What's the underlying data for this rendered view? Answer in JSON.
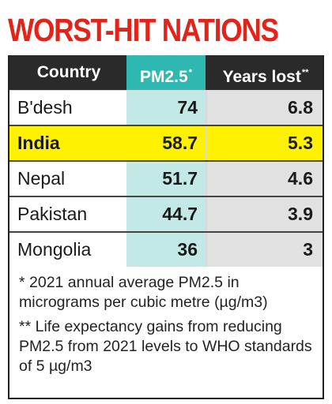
{
  "title": "WORST-HIT NATIONS",
  "columns": {
    "country": "Country",
    "pm25": "PM2.5",
    "pm25_marker": "*",
    "years_lost": "Years lost",
    "years_lost_marker": "**"
  },
  "rows": [
    {
      "country": "B'desh",
      "pm25": "74",
      "years_lost": "6.8",
      "highlight": false
    },
    {
      "country": "India",
      "pm25": "58.7",
      "years_lost": "5.3",
      "highlight": true
    },
    {
      "country": "Nepal",
      "pm25": "51.7",
      "years_lost": "4.6",
      "highlight": false
    },
    {
      "country": "Pakistan",
      "pm25": "44.7",
      "years_lost": "3.9",
      "highlight": false
    },
    {
      "country": "Mongolia",
      "pm25": "36",
      "years_lost": "3",
      "highlight": false
    }
  ],
  "footnotes": [
    "* 2021 annual average PM2.5 in micrograms per cubic metre (µg/m3)",
    "** Life expectancy gains from reducing PM2.5 from 2021 levels to WHO standards of 5 µg/m3"
  ],
  "colors": {
    "title": "#e2231a",
    "header_bg": "#2a2a2a",
    "pm_header": "#2fb7b1",
    "pm_cells": "#c3e9e7",
    "years_cells": "#e1e1e1",
    "highlight": "#fff200"
  }
}
